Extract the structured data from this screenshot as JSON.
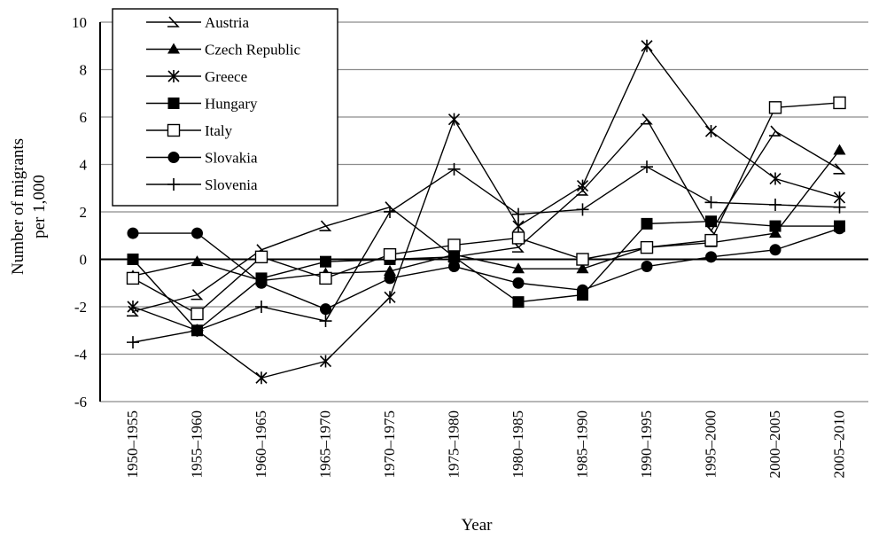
{
  "chart_data": {
    "type": "line",
    "title": "",
    "xlabel": "Year",
    "ylabel": "Number of migrants per 1,000",
    "ylabel_lines": [
      "Number of migrants",
      "per 1,000"
    ],
    "ylim": [
      -6,
      10
    ],
    "yticks": [
      -6,
      -4,
      -2,
      0,
      2,
      4,
      6,
      8,
      10
    ],
    "ytick_labels": [
      "-6",
      "-4",
      "-2",
      "0",
      "2",
      "4",
      "6",
      "8",
      "10"
    ],
    "grid": "horizontal",
    "legend_position": "top-left",
    "categories": [
      "1950–1955",
      "1955–1960",
      "1960–1965",
      "1965–1970",
      "1970–1975",
      "1975–1980",
      "1980–1985",
      "1985–1990",
      "1990–1995",
      "1995–2000",
      "2000–2005",
      "2005–2010"
    ],
    "series": [
      {
        "name": "Austria",
        "marker": "half-arrow",
        "values": [
          -2.2,
          -1.5,
          0.4,
          1.4,
          2.2,
          0.1,
          0.5,
          2.9,
          5.9,
          1.2,
          5.4,
          3.8
        ]
      },
      {
        "name": "Czech Republic",
        "marker": "filled-triangle",
        "values": [
          -0.7,
          -0.1,
          -0.9,
          -0.6,
          -0.5,
          0.2,
          -0.4,
          -0.4,
          0.5,
          0.7,
          1.1,
          4.6
        ]
      },
      {
        "name": "Greece",
        "marker": "asterisk",
        "values": [
          -2.0,
          -3.0,
          -5.0,
          -4.3,
          -1.6,
          5.9,
          1.4,
          3.1,
          9.0,
          5.4,
          3.4,
          2.6
        ]
      },
      {
        "name": "Hungary",
        "marker": "filled-square",
        "values": [
          0.0,
          -3.0,
          -0.8,
          -0.1,
          0.0,
          0.1,
          -1.8,
          -1.5,
          1.5,
          1.6,
          1.4,
          1.4
        ]
      },
      {
        "name": "Italy",
        "marker": "open-square",
        "values": [
          -0.8,
          -2.3,
          0.1,
          -0.8,
          0.2,
          0.6,
          0.9,
          0.0,
          0.5,
          0.8,
          6.4,
          6.6
        ]
      },
      {
        "name": "Slovakia",
        "marker": "filled-circle",
        "values": [
          1.1,
          1.1,
          -1.0,
          -2.1,
          -0.8,
          -0.3,
          -1.0,
          -1.3,
          -0.3,
          0.1,
          0.4,
          1.3
        ]
      },
      {
        "name": "Slovenia",
        "marker": "plus",
        "values": [
          -3.5,
          -3.0,
          -2.0,
          -2.6,
          2.0,
          3.8,
          1.9,
          2.1,
          3.9,
          2.4,
          2.3,
          2.2
        ]
      }
    ]
  }
}
